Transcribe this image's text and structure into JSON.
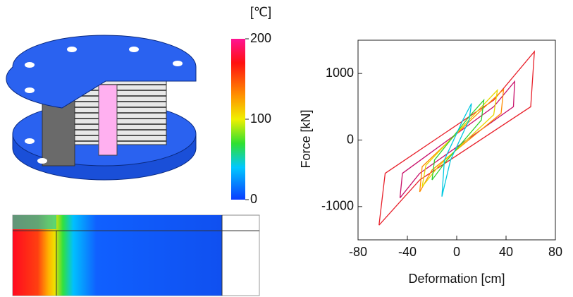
{
  "colorbar": {
    "label": "[℃]",
    "lim": [
      0,
      200
    ],
    "ticks": [
      0,
      100,
      200
    ]
  },
  "chart_data": {
    "type": "line",
    "xlabel": "Deformation [cm]",
    "ylabel": "Force [kN]",
    "xlim": [
      -80,
      80
    ],
    "xticks": [
      -80,
      -40,
      0,
      40,
      80
    ],
    "ylim": [
      -1500,
      1500
    ],
    "yticks": [
      -1000,
      0,
      1000
    ],
    "series": [
      {
        "color": "#e8202a",
        "x": [
          -63,
          -58,
          30,
          63,
          60,
          -30,
          -63
        ],
        "y": [
          -1280,
          -500,
          600,
          1330,
          500,
          -600,
          -1280
        ]
      },
      {
        "color": "#c8106a",
        "x": [
          -46,
          -44,
          30,
          47,
          46,
          -30,
          -46
        ],
        "y": [
          -870,
          -500,
          500,
          880,
          500,
          -500,
          -870
        ]
      },
      {
        "color": "#ff8c00",
        "x": [
          -30,
          -28,
          20,
          38,
          36,
          -20,
          -30
        ],
        "y": [
          -780,
          -400,
          450,
          760,
          400,
          -450,
          -780
        ]
      },
      {
        "color": "#e8d800",
        "x": [
          -28,
          -25,
          15,
          33,
          30,
          -15,
          -28
        ],
        "y": [
          -700,
          -380,
          400,
          750,
          380,
          -400,
          -700
        ]
      },
      {
        "color": "#30d030",
        "x": [
          -20,
          -18,
          10,
          22,
          20,
          -10,
          -20
        ],
        "y": [
          -600,
          -300,
          350,
          600,
          300,
          -350,
          -600
        ]
      },
      {
        "color": "#00c8e0",
        "x": [
          -12,
          -10,
          5,
          12,
          10,
          -5,
          -12
        ],
        "y": [
          -850,
          -300,
          300,
          550,
          300,
          -300,
          -850
        ]
      }
    ]
  }
}
